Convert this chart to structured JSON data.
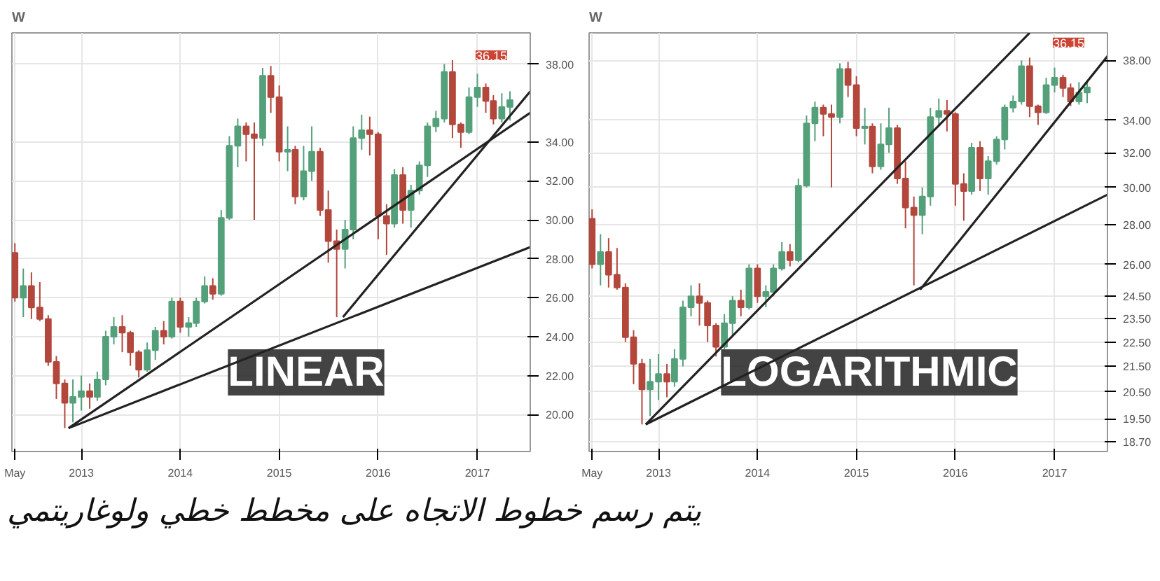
{
  "chart_data": [
    {
      "type": "candlestick",
      "title": "W",
      "x": [
        "2012-05",
        "2012-06",
        "2012-07",
        "2012-08",
        "2012-09",
        "2012-10",
        "2012-11",
        "2012-12",
        "2013-01",
        "2013-02",
        "2013-03",
        "2013-04",
        "2013-05",
        "2013-06",
        "2013-07",
        "2013-08",
        "2013-09",
        "2013-10",
        "2013-11",
        "2013-12",
        "2014-01",
        "2014-02",
        "2014-03",
        "2014-04",
        "2014-05",
        "2014-06",
        "2014-07",
        "2014-08",
        "2014-09",
        "2014-10",
        "2014-11",
        "2014-12",
        "2015-01",
        "2015-02",
        "2015-03",
        "2015-04",
        "2015-05",
        "2015-06",
        "2015-07",
        "2015-08",
        "2015-09",
        "2015-10",
        "2015-11",
        "2015-12",
        "2016-01",
        "2016-02",
        "2016-03",
        "2016-04",
        "2016-05",
        "2016-06",
        "2016-07",
        "2016-08",
        "2016-09",
        "2016-10",
        "2016-11",
        "2016-12",
        "2017-01",
        "2017-02",
        "2017-03",
        "2017-04",
        "2017-05"
      ],
      "ohlc": [
        [
          28.3,
          28.8,
          25.8,
          26.0
        ],
        [
          26.0,
          27.5,
          25.0,
          26.6
        ],
        [
          26.6,
          27.3,
          24.9,
          25.5
        ],
        [
          25.5,
          26.8,
          24.8,
          24.9
        ],
        [
          24.9,
          25.1,
          22.5,
          22.7
        ],
        [
          22.7,
          23.0,
          20.8,
          21.6
        ],
        [
          21.6,
          21.8,
          19.3,
          20.6
        ],
        [
          20.6,
          21.8,
          19.6,
          20.9
        ],
        [
          20.9,
          22.0,
          20.2,
          21.2
        ],
        [
          21.2,
          21.6,
          20.3,
          20.9
        ],
        [
          20.9,
          22.2,
          20.7,
          21.8
        ],
        [
          21.8,
          24.3,
          21.5,
          24.0
        ],
        [
          24.0,
          25.0,
          23.6,
          24.5
        ],
        [
          24.5,
          25.1,
          23.2,
          24.2
        ],
        [
          24.2,
          24.3,
          22.5,
          23.2
        ],
        [
          23.2,
          23.3,
          21.9,
          22.3
        ],
        [
          22.3,
          23.7,
          22.2,
          23.3
        ],
        [
          23.3,
          24.5,
          22.8,
          24.3
        ],
        [
          24.3,
          24.8,
          23.6,
          24.0
        ],
        [
          24.0,
          26.0,
          23.9,
          25.8
        ],
        [
          25.8,
          26.0,
          24.2,
          24.5
        ],
        [
          24.5,
          25.0,
          24.0,
          24.7
        ],
        [
          24.7,
          26.0,
          24.5,
          25.8
        ],
        [
          25.8,
          27.1,
          25.7,
          26.6
        ],
        [
          26.6,
          27.0,
          25.9,
          26.2
        ],
        [
          26.2,
          30.5,
          26.1,
          30.1
        ],
        [
          30.1,
          34.3,
          30.0,
          33.8
        ],
        [
          33.8,
          35.2,
          32.7,
          34.8
        ],
        [
          34.8,
          35.0,
          33.0,
          34.4
        ],
        [
          34.4,
          35.0,
          30.0,
          34.2
        ],
        [
          34.2,
          37.8,
          33.8,
          37.4
        ],
        [
          37.4,
          37.9,
          35.5,
          36.3
        ],
        [
          36.3,
          36.9,
          33.0,
          33.5
        ],
        [
          33.5,
          34.8,
          32.5,
          33.6
        ],
        [
          33.6,
          33.8,
          30.8,
          31.2
        ],
        [
          31.2,
          33.8,
          31.0,
          32.5
        ],
        [
          32.5,
          34.8,
          32.0,
          33.5
        ],
        [
          33.5,
          33.7,
          30.2,
          30.5
        ],
        [
          30.5,
          31.5,
          27.8,
          28.9
        ],
        [
          28.9,
          29.5,
          25.0,
          28.5
        ],
        [
          28.5,
          30.0,
          27.5,
          29.5
        ],
        [
          29.5,
          34.8,
          29.0,
          34.2
        ],
        [
          34.2,
          35.4,
          33.6,
          34.6
        ],
        [
          34.6,
          35.3,
          33.3,
          34.4
        ],
        [
          34.4,
          34.5,
          29.0,
          30.2
        ],
        [
          30.2,
          30.8,
          28.2,
          29.8
        ],
        [
          29.8,
          32.6,
          29.6,
          32.3
        ],
        [
          32.3,
          32.7,
          29.8,
          30.5
        ],
        [
          30.5,
          31.8,
          29.6,
          31.5
        ],
        [
          31.5,
          33.0,
          31.3,
          32.8
        ],
        [
          32.8,
          35.0,
          32.2,
          34.8
        ],
        [
          34.8,
          35.6,
          34.5,
          35.2
        ],
        [
          35.2,
          38.0,
          35.0,
          37.6
        ],
        [
          37.6,
          38.2,
          34.2,
          34.9
        ],
        [
          34.9,
          35.0,
          33.7,
          34.5
        ],
        [
          34.5,
          36.8,
          34.4,
          36.3
        ],
        [
          36.3,
          37.5,
          35.8,
          36.8
        ],
        [
          36.8,
          37.0,
          35.5,
          36.1
        ],
        [
          36.1,
          36.4,
          34.9,
          35.2
        ],
        [
          35.2,
          36.5,
          35.0,
          35.8
        ],
        [
          35.8,
          36.6,
          35.1,
          36.15
        ]
      ],
      "colors": [
        "#b3473c",
        "#53a07a",
        "#b3473c",
        "#b3473c",
        "#b3473c",
        "#b3473c",
        "#b3473c",
        "#53a07a",
        "#53a07a",
        "#b3473c",
        "#53a07a",
        "#53a07a",
        "#53a07a",
        "#b3473c",
        "#b3473c",
        "#b3473c",
        "#53a07a",
        "#53a07a",
        "#b3473c",
        "#53a07a",
        "#b3473c",
        "#53a07a",
        "#53a07a",
        "#53a07a",
        "#b3473c",
        "#53a07a",
        "#53a07a",
        "#53a07a",
        "#b3473c",
        "#b3473c",
        "#53a07a",
        "#b3473c",
        "#b3473c",
        "#53a07a",
        "#b3473c",
        "#53a07a",
        "#53a07a",
        "#b3473c",
        "#b3473c",
        "#b3473c",
        "#53a07a",
        "#53a07a",
        "#53a07a",
        "#b3473c",
        "#b3473c",
        "#b3473c",
        "#53a07a",
        "#b3473c",
        "#53a07a",
        "#53a07a",
        "#53a07a",
        "#53a07a",
        "#53a07a",
        "#b3473c",
        "#b3473c",
        "#53a07a",
        "#53a07a",
        "#b3473c",
        "#b3473c",
        "#53a07a",
        "#53a07a"
      ],
      "series": [
        {
          "type": "line",
          "color": "#222222",
          "x": [
            "2012-11-15",
            "2017-07-15"
          ],
          "values": [
            19.3,
            35.5
          ]
        },
        {
          "type": "line",
          "color": "#222222",
          "x": [
            "2012-11-15",
            "2017-07-15"
          ],
          "values": [
            19.3,
            28.6
          ]
        },
        {
          "type": "line",
          "color": "#222222",
          "x": [
            "2015-08-24",
            "2017-07-15"
          ],
          "values": [
            25.0,
            36.6
          ]
        }
      ],
      "xlim": [
        "2012-04-20",
        "2017-07-15"
      ],
      "xticks": [
        {
          "value": "2012-05-01",
          "label": "May"
        },
        {
          "value": "2013-01-01",
          "label": "2013"
        },
        {
          "value": "2014-01-01",
          "label": "2014"
        },
        {
          "value": "2015-01-01",
          "label": "2015"
        },
        {
          "value": "2016-01-01",
          "label": "2016"
        },
        {
          "value": "2017-01-01",
          "label": "2017"
        }
      ],
      "ylim": [
        18.1,
        39.6
      ],
      "yticks": [
        {
          "value": 20,
          "label": "20.00"
        },
        {
          "value": 22,
          "label": "22.00"
        },
        {
          "value": 24,
          "label": "24.00"
        },
        {
          "value": 26,
          "label": "26.00"
        },
        {
          "value": 28,
          "label": "28.00"
        },
        {
          "value": 30,
          "label": "30.00"
        },
        {
          "value": 32,
          "label": "32.00"
        },
        {
          "value": 34,
          "label": "34.00"
        },
        {
          "value": 38,
          "label": "38.00"
        }
      ],
      "grid": true,
      "annotations": [
        "LINEAR",
        "يتم رسم خطوط الاتجاه على مخطط خطي ولوغاريتمي",
        {
          "text": "36.15",
          "x": "2017-05",
          "y": 36.15
        }
      ]
    },
    {
      "type": "candlestick",
      "title": "W",
      "log": true,
      "x": [
        "2012-05",
        "2012-06",
        "2012-07",
        "2012-08",
        "2012-09",
        "2012-10",
        "2012-11",
        "2012-12",
        "2013-01",
        "2013-02",
        "2013-03",
        "2013-04",
        "2013-05",
        "2013-06",
        "2013-07",
        "2013-08",
        "2013-09",
        "2013-10",
        "2013-11",
        "2013-12",
        "2014-01",
        "2014-02",
        "2014-03",
        "2014-04",
        "2014-05",
        "2014-06",
        "2014-07",
        "2014-08",
        "2014-09",
        "2014-10",
        "2014-11",
        "2014-12",
        "2015-01",
        "2015-02",
        "2015-03",
        "2015-04",
        "2015-05",
        "2015-06",
        "2015-07",
        "2015-08",
        "2015-09",
        "2015-10",
        "2015-11",
        "2015-12",
        "2016-01",
        "2016-02",
        "2016-03",
        "2016-04",
        "2016-05",
        "2016-06",
        "2016-07",
        "2016-08",
        "2016-09",
        "2016-10",
        "2016-11",
        "2016-12",
        "2017-01",
        "2017-02",
        "2017-03",
        "2017-04",
        "2017-05"
      ],
      "ohlc": [
        [
          28.3,
          28.8,
          25.8,
          26.0
        ],
        [
          26.0,
          27.5,
          25.0,
          26.6
        ],
        [
          26.6,
          27.3,
          24.9,
          25.5
        ],
        [
          25.5,
          26.8,
          24.8,
          24.9
        ],
        [
          24.9,
          25.1,
          22.5,
          22.7
        ],
        [
          22.7,
          23.0,
          20.8,
          21.6
        ],
        [
          21.6,
          21.8,
          19.3,
          20.6
        ],
        [
          20.6,
          21.8,
          19.6,
          20.9
        ],
        [
          20.9,
          22.0,
          20.2,
          21.2
        ],
        [
          21.2,
          21.6,
          20.3,
          20.9
        ],
        [
          20.9,
          22.2,
          20.7,
          21.8
        ],
        [
          21.8,
          24.3,
          21.5,
          24.0
        ],
        [
          24.0,
          25.0,
          23.6,
          24.5
        ],
        [
          24.5,
          25.1,
          23.2,
          24.2
        ],
        [
          24.2,
          24.3,
          22.5,
          23.2
        ],
        [
          23.2,
          23.3,
          21.9,
          22.3
        ],
        [
          22.3,
          23.7,
          22.2,
          23.3
        ],
        [
          23.3,
          24.5,
          22.8,
          24.3
        ],
        [
          24.3,
          24.8,
          23.6,
          24.0
        ],
        [
          24.0,
          26.0,
          23.9,
          25.8
        ],
        [
          25.8,
          26.0,
          24.2,
          24.5
        ],
        [
          24.5,
          25.0,
          24.0,
          24.7
        ],
        [
          24.7,
          26.0,
          24.5,
          25.8
        ],
        [
          25.8,
          27.1,
          25.7,
          26.6
        ],
        [
          26.6,
          27.0,
          25.9,
          26.2
        ],
        [
          26.2,
          30.5,
          26.1,
          30.1
        ],
        [
          30.1,
          34.3,
          30.0,
          33.8
        ],
        [
          33.8,
          35.2,
          32.7,
          34.8
        ],
        [
          34.8,
          35.0,
          33.0,
          34.4
        ],
        [
          34.4,
          35.0,
          30.0,
          34.2
        ],
        [
          34.2,
          37.8,
          33.8,
          37.4
        ],
        [
          37.4,
          37.9,
          35.5,
          36.3
        ],
        [
          36.3,
          36.9,
          33.0,
          33.5
        ],
        [
          33.5,
          34.8,
          32.5,
          33.6
        ],
        [
          33.6,
          33.8,
          30.8,
          31.2
        ],
        [
          31.2,
          33.8,
          31.0,
          32.5
        ],
        [
          32.5,
          34.8,
          32.0,
          33.5
        ],
        [
          33.5,
          33.7,
          30.2,
          30.5
        ],
        [
          30.5,
          31.5,
          27.8,
          28.9
        ],
        [
          28.9,
          29.5,
          25.0,
          28.5
        ],
        [
          28.5,
          30.0,
          27.5,
          29.5
        ],
        [
          29.5,
          34.8,
          29.0,
          34.2
        ],
        [
          34.2,
          35.4,
          33.6,
          34.6
        ],
        [
          34.6,
          35.3,
          33.3,
          34.4
        ],
        [
          34.4,
          34.5,
          29.0,
          30.2
        ],
        [
          30.2,
          30.8,
          28.2,
          29.8
        ],
        [
          29.8,
          32.6,
          29.6,
          32.3
        ],
        [
          32.3,
          32.7,
          29.8,
          30.5
        ],
        [
          30.5,
          31.8,
          29.6,
          31.5
        ],
        [
          31.5,
          33.0,
          31.3,
          32.8
        ],
        [
          32.8,
          35.0,
          32.2,
          34.8
        ],
        [
          34.8,
          35.6,
          34.5,
          35.2
        ],
        [
          35.2,
          38.0,
          35.0,
          37.6
        ],
        [
          37.6,
          38.2,
          34.2,
          34.9
        ],
        [
          34.9,
          35.0,
          33.7,
          34.5
        ],
        [
          34.5,
          36.8,
          34.4,
          36.3
        ],
        [
          36.3,
          37.5,
          35.8,
          36.8
        ],
        [
          36.8,
          37.0,
          35.5,
          36.1
        ],
        [
          36.1,
          36.4,
          34.9,
          35.2
        ],
        [
          35.2,
          36.5,
          35.0,
          35.8
        ],
        [
          35.8,
          36.6,
          35.1,
          36.15
        ]
      ],
      "colors": [
        "#b3473c",
        "#53a07a",
        "#b3473c",
        "#b3473c",
        "#b3473c",
        "#b3473c",
        "#b3473c",
        "#53a07a",
        "#53a07a",
        "#b3473c",
        "#53a07a",
        "#53a07a",
        "#53a07a",
        "#b3473c",
        "#b3473c",
        "#b3473c",
        "#53a07a",
        "#53a07a",
        "#b3473c",
        "#53a07a",
        "#b3473c",
        "#53a07a",
        "#53a07a",
        "#53a07a",
        "#b3473c",
        "#53a07a",
        "#53a07a",
        "#53a07a",
        "#b3473c",
        "#b3473c",
        "#53a07a",
        "#b3473c",
        "#b3473c",
        "#53a07a",
        "#b3473c",
        "#53a07a",
        "#53a07a",
        "#b3473c",
        "#b3473c",
        "#b3473c",
        "#53a07a",
        "#53a07a",
        "#53a07a",
        "#b3473c",
        "#b3473c",
        "#b3473c",
        "#53a07a",
        "#b3473c",
        "#53a07a",
        "#53a07a",
        "#53a07a",
        "#53a07a",
        "#53a07a",
        "#b3473c",
        "#b3473c",
        "#53a07a",
        "#53a07a",
        "#b3473c",
        "#b3473c",
        "#53a07a",
        "#53a07a"
      ],
      "series": [
        {
          "type": "line",
          "color": "#222222",
          "x": [
            "2012-11-15",
            "2016-10-01"
          ],
          "values": [
            19.3,
            40.0
          ]
        },
        {
          "type": "line",
          "color": "#222222",
          "x": [
            "2012-11-15",
            "2017-07-15"
          ],
          "values": [
            19.3,
            29.6
          ]
        },
        {
          "type": "line",
          "color": "#222222",
          "x": [
            "2015-08-24",
            "2017-07-15"
          ],
          "values": [
            24.8,
            38.3
          ]
        }
      ],
      "xlim": [
        "2012-04-20",
        "2017-07-15"
      ],
      "xticks": [
        {
          "value": "2012-05-01",
          "label": "May"
        },
        {
          "value": "2013-01-01",
          "label": "2013"
        },
        {
          "value": "2014-01-01",
          "label": "2014"
        },
        {
          "value": "2015-01-01",
          "label": "2015"
        },
        {
          "value": "2016-01-01",
          "label": "2016"
        },
        {
          "value": "2017-01-01",
          "label": "2017"
        }
      ],
      "ylim": [
        18.35,
        40
      ],
      "yticks": [
        {
          "value": 18.7,
          "label": "18.70"
        },
        {
          "value": 19.5,
          "label": "19.50"
        },
        {
          "value": 20.5,
          "label": "20.50"
        },
        {
          "value": 21.5,
          "label": "21.50"
        },
        {
          "value": 22.5,
          "label": "22.50"
        },
        {
          "value": 23.5,
          "label": "23.50"
        },
        {
          "value": 24.5,
          "label": "24.50"
        },
        {
          "value": 26,
          "label": "26.00"
        },
        {
          "value": 28,
          "label": "28.00"
        },
        {
          "value": 30,
          "label": "30.00"
        },
        {
          "value": 32,
          "label": "32.00"
        },
        {
          "value": 34,
          "label": "34.00"
        },
        {
          "value": 38,
          "label": "38.00"
        }
      ],
      "grid": true,
      "annotations": [
        "LOGARITHMIC",
        {
          "text": "36.15",
          "x": "2017-05",
          "y": 36.15
        }
      ]
    }
  ]
}
